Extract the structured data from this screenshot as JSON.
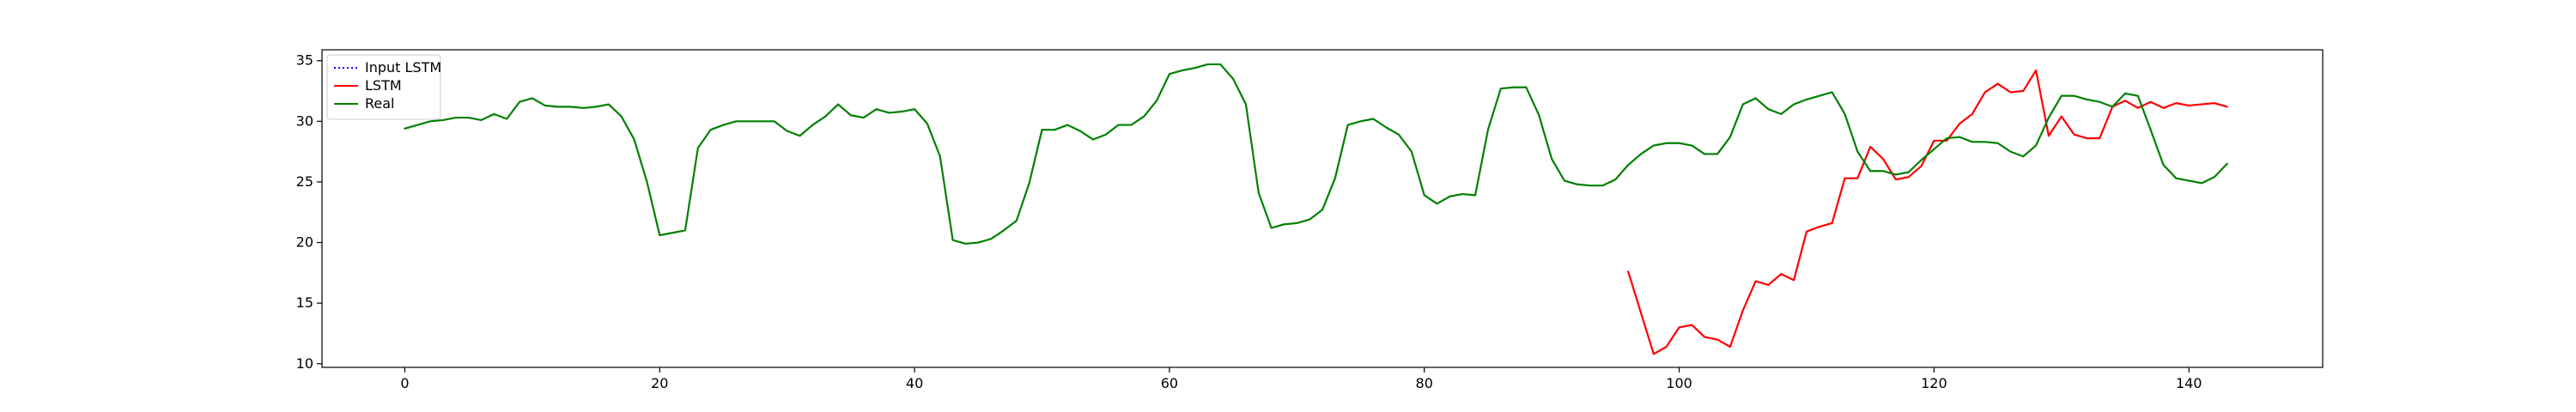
{
  "chart_data": {
    "type": "line",
    "title": "",
    "xlabel": "",
    "ylabel": "",
    "xlim": [
      -6.5,
      150.5
    ],
    "ylim": [
      9.7,
      35.9
    ],
    "grid": false,
    "legend_position": "top-left",
    "x_ticks": [
      0,
      20,
      40,
      60,
      80,
      100,
      120,
      140
    ],
    "y_ticks": [
      10,
      15,
      20,
      25,
      30,
      35
    ],
    "x_tick_labels": [
      "0",
      "20",
      "40",
      "60",
      "80",
      "100",
      "120",
      "140"
    ],
    "y_tick_labels": [
      "10",
      "15",
      "20",
      "25",
      "30",
      "35"
    ],
    "series": [
      {
        "name": "Input LSTM",
        "color": "#0000ff",
        "style": "dotted",
        "x_start": 0,
        "values": []
      },
      {
        "name": "LSTM",
        "color": "#ff0000",
        "style": "solid",
        "x_start": 96,
        "values": [
          17.6,
          14.2,
          10.8,
          11.4,
          13.0,
          13.2,
          12.2,
          12.0,
          11.4,
          14.4,
          16.8,
          16.5,
          17.4,
          16.9,
          20.9,
          21.3,
          21.6,
          25.3,
          25.3,
          27.9,
          26.9,
          25.2,
          25.4,
          26.3,
          28.4,
          28.4,
          29.8,
          30.6,
          32.4,
          33.1,
          32.4,
          32.5,
          34.2,
          28.8,
          30.4,
          28.9,
          28.6,
          28.6,
          31.2,
          31.7,
          31.1,
          31.6,
          31.1,
          31.5,
          31.3,
          31.4,
          31.5,
          31.2
        ]
      },
      {
        "name": "Real",
        "color": "#008000",
        "style": "solid",
        "x_start": 0,
        "values": [
          29.4,
          29.7,
          30.0,
          30.1,
          30.3,
          30.3,
          30.1,
          30.6,
          30.2,
          31.6,
          31.9,
          31.3,
          31.2,
          31.2,
          31.1,
          31.2,
          31.4,
          30.4,
          28.5,
          25.0,
          20.6,
          20.8,
          21.0,
          27.8,
          29.3,
          29.7,
          30.0,
          30.0,
          30.0,
          30.0,
          29.2,
          28.8,
          29.7,
          30.4,
          31.4,
          30.5,
          30.3,
          31.0,
          30.7,
          30.8,
          31.0,
          29.8,
          27.1,
          20.2,
          19.9,
          20.0,
          20.3,
          21.0,
          21.8,
          24.9,
          29.3,
          29.3,
          29.7,
          29.2,
          28.5,
          28.9,
          29.7,
          29.7,
          30.4,
          31.7,
          33.9,
          34.2,
          34.4,
          34.7,
          34.7,
          33.5,
          31.4,
          24.1,
          21.2,
          21.5,
          21.6,
          21.9,
          22.7,
          25.3,
          29.7,
          30.0,
          30.2,
          29.5,
          28.9,
          27.5,
          23.9,
          23.2,
          23.8,
          24.0,
          23.9,
          29.3,
          32.7,
          32.8,
          32.8,
          30.5,
          26.9,
          25.1,
          24.8,
          24.7,
          24.7,
          25.2,
          26.4,
          27.3,
          28.0,
          28.2,
          28.2,
          28.0,
          27.3,
          27.3,
          28.7,
          31.4,
          31.9,
          31.0,
          30.6,
          31.4,
          31.8,
          32.1,
          32.4,
          30.6,
          27.5,
          25.9,
          25.9,
          25.6,
          25.8,
          26.8,
          27.7,
          28.6,
          28.7,
          28.3,
          28.3,
          28.2,
          27.5,
          27.1,
          28.0,
          30.3,
          32.1,
          32.1,
          31.8,
          31.6,
          31.2,
          32.3,
          32.1,
          29.3,
          26.4,
          25.3,
          25.1,
          24.9,
          25.4,
          26.5
        ]
      }
    ]
  }
}
